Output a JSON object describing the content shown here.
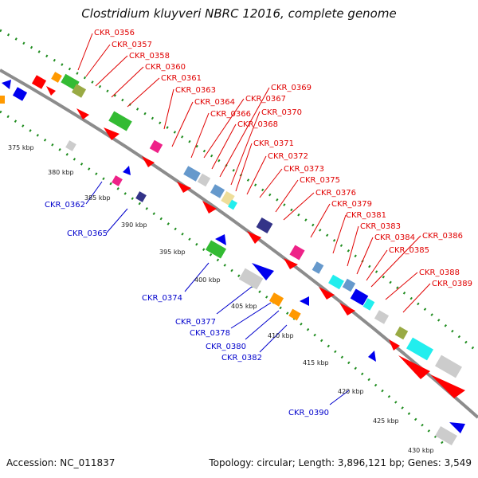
{
  "title": "Clostridium kluyveri NBRC 12016, complete genome",
  "footer": {
    "accession": "Accession: NC_011837",
    "summary": "Topology: circular; Length: 3,896,121 bp; Genes: 3,549"
  },
  "colors": {
    "backbone": "#8c8c8c",
    "dots": "#1e8c1e",
    "forward_label": "#e00000",
    "reverse_label": "#0000cc",
    "gene_red": "#ff0000",
    "gene_blue": "#0000ee",
    "gene_green": "#33bb33",
    "gene_gray": "#cccccc",
    "gene_cyan": "#22eeee",
    "gene_orange": "#ff9900",
    "gene_magenta": "#ee2288",
    "gene_olive": "#99aa44",
    "gene_navy": "#333388",
    "gene_steel": "#6699cc"
  },
  "ticks": [
    {
      "label": "375 kbp"
    },
    {
      "label": "380 kbp"
    },
    {
      "label": "385 kbp"
    },
    {
      "label": "390 kbp"
    },
    {
      "label": "395 kbp"
    },
    {
      "label": "400 kbp"
    },
    {
      "label": "405 kbp"
    },
    {
      "label": "410 kbp"
    },
    {
      "label": "415 kbp"
    },
    {
      "label": "420 kbp"
    },
    {
      "label": "425 kbp"
    },
    {
      "label": "430 kbp"
    }
  ],
  "labels_forward": [
    "CKR_0356",
    "CKR_0357",
    "CKR_0358",
    "CKR_0360",
    "CKR_0361",
    "CKR_0363",
    "CKR_0364",
    "CKR_0366",
    "CKR_0367",
    "CKR_0368",
    "CKR_0369",
    "CKR_0370",
    "CKR_0371",
    "CKR_0372",
    "CKR_0373",
    "CKR_0375",
    "CKR_0376",
    "CKR_0379",
    "CKR_0381",
    "CKR_0383",
    "CKR_0384",
    "CKR_0385",
    "CKR_0386",
    "CKR_0388",
    "CKR_0389"
  ],
  "labels_reverse": [
    "CKR_0362",
    "CKR_0365",
    "CKR_0374",
    "CKR_0377",
    "CKR_0378",
    "CKR_0380",
    "CKR_0382",
    "CKR_0390"
  ]
}
